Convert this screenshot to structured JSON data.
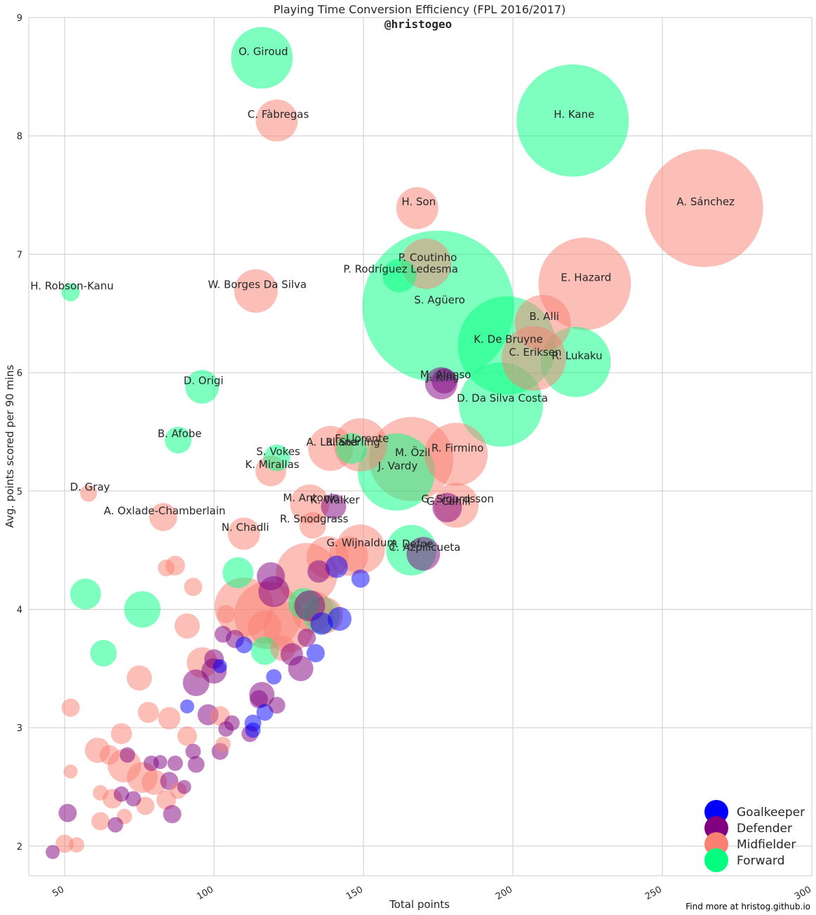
{
  "chart_data": {
    "type": "scatter",
    "title": "Playing Time Conversion Efficiency (FPL 2016/2017)",
    "subtitle": "@hristogeo",
    "xlabel": "Total points",
    "ylabel": "Avg. points scored per 90 mins",
    "xlim": [
      38,
      300
    ],
    "ylim": [
      1.75,
      9
    ],
    "x_ticks": [
      50,
      100,
      150,
      200,
      250,
      300
    ],
    "y_ticks": [
      2,
      3,
      4,
      5,
      6,
      7,
      8,
      9
    ],
    "grid": true,
    "legend_position": "bottom-right",
    "footer": "Find more at hristog.github.io",
    "colors": {
      "Goalkeeper": "#0000ff",
      "Defender": "#800080",
      "Midfielder": "#fa8072",
      "Forward": "#00ff7f"
    },
    "legend": [
      "Goalkeeper",
      "Defender",
      "Midfielder",
      "Forward"
    ],
    "labeled_points": [
      {
        "name": "O. Giroud",
        "x": 116,
        "y": 8.66,
        "position": "Forward",
        "size": 44
      },
      {
        "name": "C. Fàbregas",
        "x": 121,
        "y": 8.13,
        "position": "Midfielder",
        "size": 30
      },
      {
        "name": "H. Kane",
        "x": 220,
        "y": 8.13,
        "position": "Forward",
        "size": 80
      },
      {
        "name": "A. Sánchez",
        "x": 264,
        "y": 7.39,
        "position": "Midfielder",
        "size": 84
      },
      {
        "name": "H. Son",
        "x": 168,
        "y": 7.39,
        "position": "Midfielder",
        "size": 30
      },
      {
        "name": "P. Coutinho",
        "x": 171,
        "y": 6.92,
        "position": "Midfielder",
        "size": 36
      },
      {
        "name": "P. Rodríguez Ledesma",
        "x": 162,
        "y": 6.82,
        "position": "Forward",
        "size": 24
      },
      {
        "name": "H. Robson-Kanu",
        "x": 52,
        "y": 6.68,
        "position": "Forward",
        "size": 13
      },
      {
        "name": "W. Borges Da Silva",
        "x": 114,
        "y": 6.69,
        "position": "Midfielder",
        "size": 31
      },
      {
        "name": "S. Agüero",
        "x": 175,
        "y": 6.56,
        "position": "Forward",
        "size": 108
      },
      {
        "name": "E. Hazard",
        "x": 224,
        "y": 6.75,
        "position": "Midfielder",
        "size": 66
      },
      {
        "name": "B. Alli",
        "x": 210,
        "y": 6.42,
        "position": "Midfielder",
        "size": 40
      },
      {
        "name": "K. De Bruyne",
        "x": 198,
        "y": 6.23,
        "position": "Forward",
        "size": 70
      },
      {
        "name": "C. Eriksen",
        "x": 207,
        "y": 6.12,
        "position": "Midfielder",
        "size": 46
      },
      {
        "name": "R. Lukaku",
        "x": 221,
        "y": 6.09,
        "position": "Forward",
        "size": 50
      },
      {
        "name": "M. Alonso",
        "x": 177,
        "y": 5.93,
        "position": "Defender",
        "size": 18
      },
      {
        "name": "J. King",
        "x": 176,
        "y": 5.91,
        "position": "Defender",
        "size": 23
      },
      {
        "name": "D. Origi",
        "x": 96,
        "y": 5.88,
        "position": "Forward",
        "size": 24
      },
      {
        "name": "D. Da Silva Costa",
        "x": 196,
        "y": 5.73,
        "position": "Forward",
        "size": 60
      },
      {
        "name": "B. Afobe",
        "x": 88,
        "y": 5.43,
        "position": "Forward",
        "size": 19
      },
      {
        "name": "F. Llorente",
        "x": 149,
        "y": 5.39,
        "position": "Midfielder",
        "size": 38
      },
      {
        "name": "A. Lallana",
        "x": 139,
        "y": 5.36,
        "position": "Midfielder",
        "size": 32
      },
      {
        "name": "R. Sterling",
        "x": 146,
        "y": 5.36,
        "position": "Forward",
        "size": 22
      },
      {
        "name": "M. Özil",
        "x": 166,
        "y": 5.27,
        "position": "Midfielder",
        "size": 60
      },
      {
        "name": "R. Firmino",
        "x": 181,
        "y": 5.31,
        "position": "Midfielder",
        "size": 45
      },
      {
        "name": "J. Vardy",
        "x": 161,
        "y": 5.16,
        "position": "Forward",
        "size": 55
      },
      {
        "name": "S. Vokes",
        "x": 121,
        "y": 5.28,
        "position": "Forward",
        "size": 19
      },
      {
        "name": "K. Mirallas",
        "x": 119,
        "y": 5.17,
        "position": "Midfielder",
        "size": 22
      },
      {
        "name": "D. Gray",
        "x": 58,
        "y": 4.98,
        "position": "Midfielder",
        "size": 12
      },
      {
        "name": "G. Sigurdsson",
        "x": 181,
        "y": 4.88,
        "position": "Midfielder",
        "size": 32
      },
      {
        "name": "G. Cahill",
        "x": 178,
        "y": 4.86,
        "position": "Defender",
        "size": 21
      },
      {
        "name": "A. Oxlade-Chamberlain",
        "x": 83,
        "y": 4.78,
        "position": "Midfielder",
        "size": 20
      },
      {
        "name": "M. Antonio",
        "x": 132,
        "y": 4.89,
        "position": "Midfielder",
        "size": 28
      },
      {
        "name": "K. Walker",
        "x": 140,
        "y": 4.87,
        "position": "Defender",
        "size": 18
      },
      {
        "name": "R. Snodgrass",
        "x": 133,
        "y": 4.71,
        "position": "Midfielder",
        "size": 19
      },
      {
        "name": "N. Chadli",
        "x": 110,
        "y": 4.64,
        "position": "Midfielder",
        "size": 23
      },
      {
        "name": "G. Wijnaldum",
        "x": 149,
        "y": 4.51,
        "position": "Midfielder",
        "size": 35
      },
      {
        "name": "J. Defoe",
        "x": 166,
        "y": 4.5,
        "position": "Forward",
        "size": 36
      },
      {
        "name": "C. Azpilicueta",
        "x": 170,
        "y": 4.47,
        "position": "Defender",
        "size": 24
      }
    ],
    "unlabeled_points": [
      {
        "x": 57,
        "y": 4.13,
        "position": "Forward",
        "size": 22
      },
      {
        "x": 76,
        "y": 4.0,
        "position": "Forward",
        "size": 26
      },
      {
        "x": 63,
        "y": 3.63,
        "position": "Forward",
        "size": 19
      },
      {
        "x": 108,
        "y": 4.31,
        "position": "Forward",
        "size": 22
      },
      {
        "x": 117,
        "y": 3.65,
        "position": "Forward",
        "size": 20
      },
      {
        "x": 130,
        "y": 4.05,
        "position": "Forward",
        "size": 22
      },
      {
        "x": 136,
        "y": 3.95,
        "position": "Forward",
        "size": 26
      },
      {
        "x": 110,
        "y": 4.02,
        "position": "Midfielder",
        "size": 42
      },
      {
        "x": 118,
        "y": 3.95,
        "position": "Midfielder",
        "size": 48
      },
      {
        "x": 125,
        "y": 3.85,
        "position": "Midfielder",
        "size": 36
      },
      {
        "x": 131,
        "y": 4.3,
        "position": "Midfielder",
        "size": 44
      },
      {
        "x": 138,
        "y": 4.44,
        "position": "Midfielder",
        "size": 30
      },
      {
        "x": 145,
        "y": 4.45,
        "position": "Midfielder",
        "size": 28
      },
      {
        "x": 133,
        "y": 3.98,
        "position": "Midfielder",
        "size": 30
      },
      {
        "x": 137,
        "y": 3.95,
        "position": "Midfielder",
        "size": 26
      },
      {
        "x": 91,
        "y": 3.86,
        "position": "Midfielder",
        "size": 18
      },
      {
        "x": 96,
        "y": 3.55,
        "position": "Midfielder",
        "size": 22
      },
      {
        "x": 75,
        "y": 3.42,
        "position": "Midfielder",
        "size": 18
      },
      {
        "x": 52,
        "y": 3.17,
        "position": "Midfielder",
        "size": 13
      },
      {
        "x": 78,
        "y": 3.13,
        "position": "Midfielder",
        "size": 15
      },
      {
        "x": 85,
        "y": 3.08,
        "position": "Midfielder",
        "size": 16
      },
      {
        "x": 69,
        "y": 2.95,
        "position": "Midfielder",
        "size": 15
      },
      {
        "x": 61,
        "y": 2.81,
        "position": "Midfielder",
        "size": 18
      },
      {
        "x": 65,
        "y": 2.77,
        "position": "Midfielder",
        "size": 14
      },
      {
        "x": 70,
        "y": 2.68,
        "position": "Midfielder",
        "size": 24
      },
      {
        "x": 76,
        "y": 2.58,
        "position": "Midfielder",
        "size": 22
      },
      {
        "x": 80,
        "y": 2.54,
        "position": "Midfielder",
        "size": 18
      },
      {
        "x": 84,
        "y": 2.39,
        "position": "Midfielder",
        "size": 14
      },
      {
        "x": 88,
        "y": 2.47,
        "position": "Midfielder",
        "size": 12
      },
      {
        "x": 91,
        "y": 2.93,
        "position": "Midfielder",
        "size": 14
      },
      {
        "x": 52,
        "y": 2.63,
        "position": "Midfielder",
        "size": 10
      },
      {
        "x": 62,
        "y": 2.45,
        "position": "Midfielder",
        "size": 11
      },
      {
        "x": 62,
        "y": 2.21,
        "position": "Midfielder",
        "size": 13
      },
      {
        "x": 66,
        "y": 2.4,
        "position": "Midfielder",
        "size": 14
      },
      {
        "x": 70,
        "y": 2.25,
        "position": "Midfielder",
        "size": 11
      },
      {
        "x": 77,
        "y": 2.34,
        "position": "Midfielder",
        "size": 13
      },
      {
        "x": 50,
        "y": 2.02,
        "position": "Midfielder",
        "size": 13
      },
      {
        "x": 54,
        "y": 2.01,
        "position": "Midfielder",
        "size": 11
      },
      {
        "x": 93,
        "y": 4.19,
        "position": "Midfielder",
        "size": 13
      },
      {
        "x": 84,
        "y": 4.35,
        "position": "Midfielder",
        "size": 12
      },
      {
        "x": 87,
        "y": 4.37,
        "position": "Midfielder",
        "size": 14
      },
      {
        "x": 102,
        "y": 3.1,
        "position": "Midfielder",
        "size": 14
      },
      {
        "x": 103,
        "y": 2.86,
        "position": "Midfielder",
        "size": 11
      },
      {
        "x": 117,
        "y": 3.85,
        "position": "Midfielder",
        "size": 24
      },
      {
        "x": 123,
        "y": 3.67,
        "position": "Midfielder",
        "size": 18
      },
      {
        "x": 104,
        "y": 3.96,
        "position": "Midfielder",
        "size": 13
      },
      {
        "x": 141,
        "y": 4.36,
        "position": "Goalkeeper",
        "size": 16
      },
      {
        "x": 149,
        "y": 4.26,
        "position": "Goalkeeper",
        "size": 13
      },
      {
        "x": 142,
        "y": 3.92,
        "position": "Goalkeeper",
        "size": 17
      },
      {
        "x": 136,
        "y": 3.88,
        "position": "Goalkeeper",
        "size": 16
      },
      {
        "x": 134,
        "y": 3.63,
        "position": "Goalkeeper",
        "size": 13
      },
      {
        "x": 110,
        "y": 3.7,
        "position": "Goalkeeper",
        "size": 12
      },
      {
        "x": 120,
        "y": 3.43,
        "position": "Goalkeeper",
        "size": 11
      },
      {
        "x": 117,
        "y": 3.13,
        "position": "Goalkeeper",
        "size": 12
      },
      {
        "x": 113,
        "y": 3.04,
        "position": "Goalkeeper",
        "size": 12
      },
      {
        "x": 113,
        "y": 2.98,
        "position": "Goalkeeper",
        "size": 11
      },
      {
        "x": 91,
        "y": 3.18,
        "position": "Goalkeeper",
        "size": 10
      },
      {
        "x": 102,
        "y": 3.52,
        "position": "Goalkeeper",
        "size": 10
      },
      {
        "x": 119,
        "y": 4.28,
        "position": "Defender",
        "size": 20
      },
      {
        "x": 120,
        "y": 4.15,
        "position": "Defender",
        "size": 22
      },
      {
        "x": 132,
        "y": 4.03,
        "position": "Defender",
        "size": 22
      },
      {
        "x": 135,
        "y": 4.32,
        "position": "Defender",
        "size": 16
      },
      {
        "x": 131,
        "y": 3.76,
        "position": "Defender",
        "size": 13
      },
      {
        "x": 126,
        "y": 3.62,
        "position": "Defender",
        "size": 16
      },
      {
        "x": 129,
        "y": 3.5,
        "position": "Defender",
        "size": 18
      },
      {
        "x": 107,
        "y": 3.75,
        "position": "Defender",
        "size": 13
      },
      {
        "x": 103,
        "y": 3.79,
        "position": "Defender",
        "size": 12
      },
      {
        "x": 100,
        "y": 3.58,
        "position": "Defender",
        "size": 14
      },
      {
        "x": 100,
        "y": 3.48,
        "position": "Defender",
        "size": 18
      },
      {
        "x": 94,
        "y": 3.38,
        "position": "Defender",
        "size": 19
      },
      {
        "x": 116,
        "y": 3.28,
        "position": "Defender",
        "size": 18
      },
      {
        "x": 115,
        "y": 3.24,
        "position": "Defender",
        "size": 13
      },
      {
        "x": 121,
        "y": 3.19,
        "position": "Defender",
        "size": 12
      },
      {
        "x": 98,
        "y": 3.11,
        "position": "Defender",
        "size": 15
      },
      {
        "x": 106,
        "y": 3.04,
        "position": "Defender",
        "size": 11
      },
      {
        "x": 104,
        "y": 2.99,
        "position": "Defender",
        "size": 11
      },
      {
        "x": 112,
        "y": 2.95,
        "position": "Defender",
        "size": 12
      },
      {
        "x": 93,
        "y": 2.8,
        "position": "Defender",
        "size": 11
      },
      {
        "x": 102,
        "y": 2.8,
        "position": "Defender",
        "size": 12
      },
      {
        "x": 71,
        "y": 2.77,
        "position": "Defender",
        "size": 11
      },
      {
        "x": 79,
        "y": 2.7,
        "position": "Defender",
        "size": 11
      },
      {
        "x": 82,
        "y": 2.71,
        "position": "Defender",
        "size": 10
      },
      {
        "x": 87,
        "y": 2.7,
        "position": "Defender",
        "size": 11
      },
      {
        "x": 94,
        "y": 2.69,
        "position": "Defender",
        "size": 12
      },
      {
        "x": 85,
        "y": 2.55,
        "position": "Defender",
        "size": 13
      },
      {
        "x": 90,
        "y": 2.5,
        "position": "Defender",
        "size": 10
      },
      {
        "x": 69,
        "y": 2.44,
        "position": "Defender",
        "size": 11
      },
      {
        "x": 73,
        "y": 2.4,
        "position": "Defender",
        "size": 11
      },
      {
        "x": 51,
        "y": 2.28,
        "position": "Defender",
        "size": 13
      },
      {
        "x": 86,
        "y": 2.27,
        "position": "Defender",
        "size": 13
      },
      {
        "x": 67,
        "y": 2.18,
        "position": "Defender",
        "size": 11
      },
      {
        "x": 46,
        "y": 1.95,
        "position": "Defender",
        "size": 10
      }
    ]
  }
}
